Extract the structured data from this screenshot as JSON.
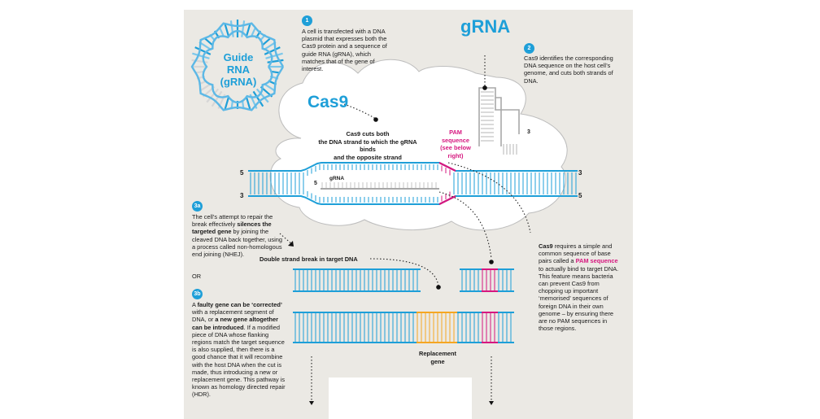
{
  "ring": {
    "line1": "Guide",
    "line2": "RNA",
    "line3": "(gRNA)"
  },
  "step1": {
    "badge": "1",
    "text": "A cell is transfected with a DNA plasmid that expresses both the Cas9 protein and a sequence of guide RNA (gRNA), which matches that of the gene of interest."
  },
  "grna_title": "gRNA",
  "step2": {
    "badge": "2",
    "text": "Cas9 identifies the corresponding DNA sequence on the host cell’s genome, and cuts both strands of DNA."
  },
  "cas9_title": "Cas9",
  "cut_label": {
    "l1": "Cas9 cuts both",
    "l2": "the DNA strand to which the gRNA binds",
    "l3": "and the opposite strand"
  },
  "pam_label": {
    "l1": "PAM",
    "l2": "sequence",
    "l3": "(see below",
    "l4": "right)"
  },
  "grna_small": "gRNA",
  "ends": {
    "five": "5",
    "three": "3"
  },
  "step3a": {
    "badge": "3a",
    "t1": "The cell’s attempt to repair the break effectively ",
    "t2": "silences the targeted gene",
    "t3": " by joining the cleaved DNA back together, using a process called non-homologous end joining (NHEJ)."
  },
  "or_text": "OR",
  "step3b": {
    "badge": "3b",
    "t1": "A ",
    "t2": "faulty gene can be ‘corrected’",
    "t3": " with a replacement segment of DNA, or ",
    "t4": "a new gene altogether can be introduced",
    "t5": ". If a modified piece of DNA whose flanking regions match the target sequence is also supplied, then there is a good chance that it will recombine with the host DNA when the cut is made, thus introducing a new or replacement gene. This pathway is known as homology directed repair (HDR)."
  },
  "ds_break": "Double strand break in target DNA",
  "replacement": {
    "l1": "Replacement",
    "l2": "gene"
  },
  "pam_note": {
    "t1": "Cas9",
    "t2": " requires a simple and common sequence of base pairs called a ",
    "t3": "PAM sequence",
    "t4": " to actually bind to target DNA. This feature means bacteria can prevent Cas9 from chopping up important ‘memorised’ sequences of foreign DNA in their own genome – by ensuring there are no PAM sequences in those regions."
  },
  "colors": {
    "blue": "#1e9fd8",
    "pink": "#d6177f",
    "orange": "#f5a623",
    "grey": "#b5b5b5",
    "panel": "#ebe9e4"
  }
}
